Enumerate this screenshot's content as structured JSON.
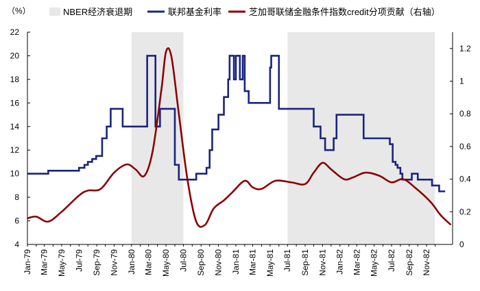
{
  "chart_data": {
    "type": "line",
    "left_axis_unit": "（%）",
    "right_axis_unit": "",
    "ylim_left": [
      4,
      22
    ],
    "yticks_left": [
      4,
      6,
      8,
      10,
      12,
      14,
      16,
      18,
      20,
      22
    ],
    "ylim_right": [
      0,
      1.3
    ],
    "yticks_right": [
      0,
      0.2,
      0.4,
      0.6,
      0.8,
      1,
      1.2
    ],
    "x_range": [
      "1979-01-01",
      "1983-01-31"
    ],
    "x_ticks": [
      "Jan-79",
      "Mar-79",
      "May-79",
      "Jul-79",
      "Sep-79",
      "Nov-79",
      "Jan-80",
      "Mar-80",
      "May-80",
      "Jul-80",
      "Sep-80",
      "Nov-80",
      "Jan-81",
      "Mar-81",
      "May-81",
      "Jul-81",
      "Sep-81",
      "Nov-81",
      "Jan-82",
      "Mar-82",
      "May-82",
      "Jul-82",
      "Sep-82",
      "Nov-82"
    ],
    "legend": [
      {
        "name": "NBER经济衰退期",
        "color": "#e8e8e8",
        "kind": "area"
      },
      {
        "name": "联邦基金利率",
        "color": "#1a237e",
        "kind": "line"
      },
      {
        "name": "芝加哥联储金融条件指数credit分项贡献（右轴）",
        "color": "#8b0000",
        "kind": "line"
      }
    ],
    "recessions": [
      {
        "start": "1980-01-01",
        "end": "1980-07-01"
      },
      {
        "start": "1981-07-01",
        "end": "1982-11-30"
      }
    ],
    "series": [
      {
        "name": "联邦基金利率",
        "axis": "left",
        "color": "#1a237e",
        "step": true,
        "points": [
          [
            "1979-01-01",
            10.0
          ],
          [
            "1979-03-15",
            10.25
          ],
          [
            "1979-07-01",
            10.5
          ],
          [
            "1979-07-20",
            10.75
          ],
          [
            "1979-08-01",
            11.0
          ],
          [
            "1979-08-16",
            11.25
          ],
          [
            "1979-08-30",
            11.5
          ],
          [
            "1979-09-16",
            11.5
          ],
          [
            "1979-09-20",
            13.0
          ],
          [
            "1979-10-06",
            14.0
          ],
          [
            "1979-10-20",
            15.5
          ],
          [
            "1979-12-01",
            14.0
          ],
          [
            "1980-02-25",
            20.0
          ],
          [
            "1980-03-18",
            20.0
          ],
          [
            "1980-03-25",
            14.0
          ],
          [
            "1980-04-10",
            15.5
          ],
          [
            "1980-05-10",
            15.5
          ],
          [
            "1980-06-01",
            10.75
          ],
          [
            "1980-06-15",
            9.5
          ],
          [
            "1980-08-05",
            9.5
          ],
          [
            "1980-08-15",
            10.0
          ],
          [
            "1980-09-20",
            10.5
          ],
          [
            "1980-10-01",
            12.0
          ],
          [
            "1980-10-10",
            13.75
          ],
          [
            "1980-11-01",
            15.0
          ],
          [
            "1980-11-20",
            16.5
          ],
          [
            "1980-12-05",
            18.0
          ],
          [
            "1980-12-10",
            20.0
          ],
          [
            "1980-12-25",
            18.0
          ],
          [
            "1981-01-01",
            20.0
          ],
          [
            "1981-01-15",
            18.0
          ],
          [
            "1981-01-25",
            20.0
          ],
          [
            "1981-02-01",
            17.0
          ],
          [
            "1981-02-15",
            16.0
          ],
          [
            "1981-05-01",
            19.0
          ],
          [
            "1981-05-05",
            20.0
          ],
          [
            "1981-06-01",
            15.5
          ],
          [
            "1981-10-01",
            14.0
          ],
          [
            "1981-10-25",
            13.0
          ],
          [
            "1981-11-10",
            12.0
          ],
          [
            "1981-12-05",
            12.0
          ],
          [
            "1981-12-10",
            13.0
          ],
          [
            "1981-12-20",
            15.0
          ],
          [
            "1982-03-25",
            13.0
          ],
          [
            "1982-06-25",
            12.5
          ],
          [
            "1982-07-05",
            11.0
          ],
          [
            "1982-07-15",
            10.75
          ],
          [
            "1982-07-22",
            10.5
          ],
          [
            "1982-08-01",
            10.0
          ],
          [
            "1982-08-08",
            9.5
          ],
          [
            "1982-09-01",
            9.5
          ],
          [
            "1982-09-10",
            10.0
          ],
          [
            "1982-10-01",
            9.5
          ],
          [
            "1982-11-20",
            9.0
          ],
          [
            "1982-12-15",
            8.5
          ],
          [
            "1983-01-05",
            8.5
          ]
        ]
      },
      {
        "name": "芝加哥联储金融条件指数credit分项贡献（右轴）",
        "axis": "right",
        "color": "#8b0000",
        "step": false,
        "points": [
          [
            "1979-01-01",
            0.16
          ],
          [
            "1979-02-01",
            0.17
          ],
          [
            "1979-03-15",
            0.14
          ],
          [
            "1979-05-01",
            0.2
          ],
          [
            "1979-07-01",
            0.3
          ],
          [
            "1979-08-01",
            0.33
          ],
          [
            "1979-09-15",
            0.34
          ],
          [
            "1979-11-01",
            0.44
          ],
          [
            "1979-12-15",
            0.49
          ],
          [
            "1980-01-15",
            0.46
          ],
          [
            "1980-02-15",
            0.42
          ],
          [
            "1980-03-15",
            0.57
          ],
          [
            "1980-04-15",
            0.95
          ],
          [
            "1980-05-01",
            1.18
          ],
          [
            "1980-05-20",
            1.15
          ],
          [
            "1980-06-15",
            0.8
          ],
          [
            "1980-07-15",
            0.4
          ],
          [
            "1980-08-15",
            0.14
          ],
          [
            "1980-09-15",
            0.12
          ],
          [
            "1980-10-15",
            0.22
          ],
          [
            "1980-11-20",
            0.27
          ],
          [
            "1980-12-20",
            0.32
          ],
          [
            "1981-02-01",
            0.39
          ],
          [
            "1981-03-01",
            0.35
          ],
          [
            "1981-04-01",
            0.34
          ],
          [
            "1981-05-20",
            0.39
          ],
          [
            "1981-07-15",
            0.38
          ],
          [
            "1981-09-01",
            0.37
          ],
          [
            "1981-10-01",
            0.44
          ],
          [
            "1981-11-01",
            0.5
          ],
          [
            "1981-12-01",
            0.46
          ],
          [
            "1982-01-15",
            0.4
          ],
          [
            "1982-02-15",
            0.41
          ],
          [
            "1982-04-01",
            0.44
          ],
          [
            "1982-05-20",
            0.42
          ],
          [
            "1982-07-01",
            0.38
          ],
          [
            "1982-08-10",
            0.4
          ],
          [
            "1982-09-20",
            0.35
          ],
          [
            "1982-11-15",
            0.26
          ],
          [
            "1982-12-20",
            0.18
          ],
          [
            "1983-01-25",
            0.12
          ]
        ]
      }
    ]
  }
}
